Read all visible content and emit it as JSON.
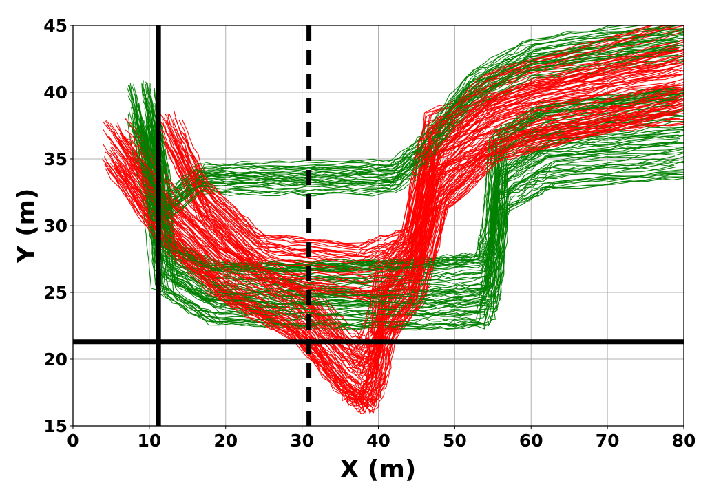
{
  "chart_data": {
    "type": "line",
    "title": "",
    "xlabel": "X (m)",
    "ylabel": "Y (m)",
    "xlim": [
      0,
      80
    ],
    "ylim": [
      15,
      45
    ],
    "xticks": [
      "0",
      "10",
      "20",
      "30",
      "40",
      "50",
      "60",
      "70",
      "80"
    ],
    "yticks": [
      "15",
      "20",
      "25",
      "30",
      "35",
      "40",
      "45"
    ],
    "grid": true,
    "legend": "none",
    "colors": {
      "series_a": "#008000",
      "series_b": "#ff0000",
      "reference": "#000000"
    },
    "reference_lines": [
      {
        "orientation": "vertical",
        "value": 11.2,
        "style": "solid"
      },
      {
        "orientation": "vertical",
        "value": 30.9,
        "style": "dashed"
      },
      {
        "orientation": "horizontal",
        "value": 21.3,
        "style": "solid"
      }
    ],
    "series": [
      {
        "color": "#008000",
        "description_paths": [
          {
            "points": [
              [
                9,
                39
              ],
              [
                11,
                33
              ],
              [
                12,
                27
              ],
              [
                18,
                25
              ],
              [
                30,
                24.8
              ],
              [
                45,
                24.9
              ],
              [
                54,
                25.2
              ],
              [
                55,
                27.5
              ],
              [
                56,
                34
              ],
              [
                62,
                36
              ],
              [
                80,
                37
              ]
            ],
            "spread": 2.4,
            "count": 70
          },
          {
            "points": [
              [
                10,
                37
              ],
              [
                11.5,
                31
              ],
              [
                17,
                33.5
              ],
              [
                30,
                33.5
              ],
              [
                42,
                33.6
              ],
              [
                46,
                35.5
              ],
              [
                52,
                40
              ],
              [
                60,
                42.5
              ],
              [
                80,
                44
              ]
            ],
            "spread": 1.3,
            "count": 35
          }
        ]
      },
      {
        "color": "#ff0000",
        "description_paths": [
          {
            "points": [
              [
                6,
                36
              ],
              [
                12,
                31
              ],
              [
                20,
                26.5
              ],
              [
                30,
                23.5
              ],
              [
                36,
                19.5
              ],
              [
                38.5,
                18.5
              ],
              [
                40,
                20.5
              ],
              [
                41,
                24
              ],
              [
                45,
                27
              ],
              [
                48,
                34
              ],
              [
                55,
                38
              ],
              [
                80,
                42
              ]
            ],
            "spread": 2.6,
            "count": 75
          },
          {
            "points": [
              [
                13,
                37
              ],
              [
                17,
                32
              ],
              [
                25,
                27.5
              ],
              [
                38,
                26.5
              ],
              [
                44,
                27.5
              ],
              [
                47,
                36
              ],
              [
                60,
                39
              ],
              [
                80,
                40.5
              ]
            ],
            "spread": 2.0,
            "count": 45
          }
        ]
      }
    ]
  }
}
